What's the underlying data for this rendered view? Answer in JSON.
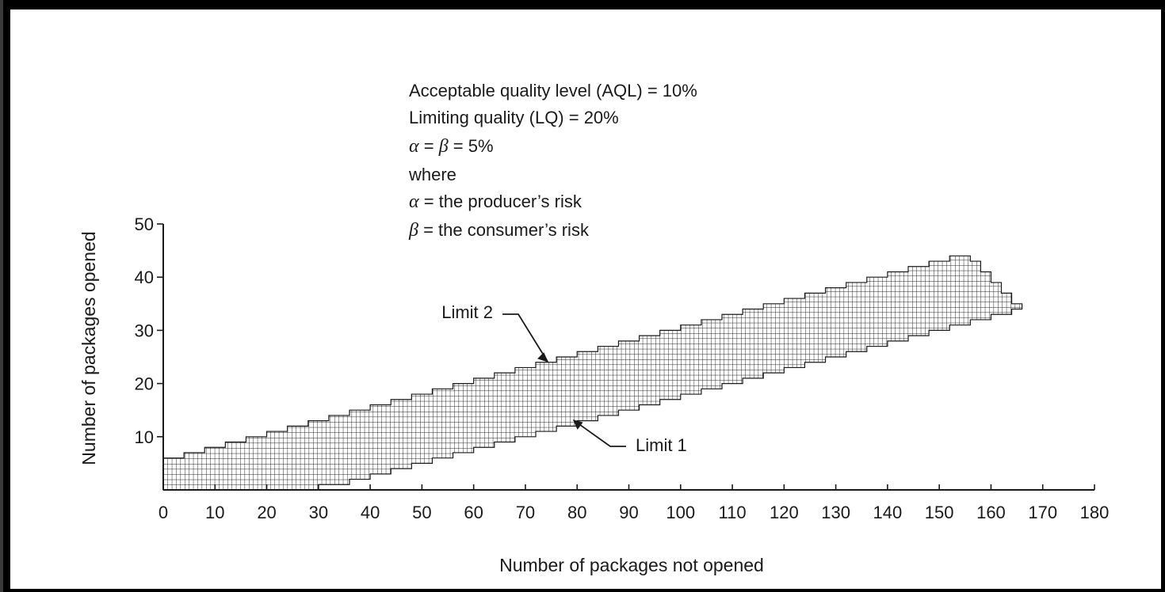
{
  "chart_data": {
    "type": "area",
    "title": "",
    "xlabel": "Number of packages not opened",
    "ylabel": "Number of packages opened",
    "xlim": [
      0,
      180
    ],
    "ylim": [
      0,
      50
    ],
    "x_ticks": [
      "0",
      "10",
      "20",
      "30",
      "40",
      "50",
      "60",
      "70",
      "80",
      "90",
      "100",
      "110",
      "120",
      "130",
      "140",
      "150",
      "160",
      "170",
      "180"
    ],
    "y_ticks": [
      "10",
      "20",
      "30",
      "40",
      "50"
    ],
    "grid": false,
    "series": [
      {
        "name": "Limit 2",
        "values": [
          [
            0,
            6
          ],
          [
            4,
            7
          ],
          [
            8,
            8
          ],
          [
            12,
            9
          ],
          [
            16,
            10
          ],
          [
            20,
            11
          ],
          [
            24,
            12
          ],
          [
            28,
            13
          ],
          [
            32,
            14
          ],
          [
            36,
            15
          ],
          [
            40,
            16
          ],
          [
            44,
            17
          ],
          [
            48,
            18
          ],
          [
            52,
            19
          ],
          [
            56,
            20
          ],
          [
            60,
            21
          ],
          [
            64,
            22
          ],
          [
            68,
            23
          ],
          [
            72,
            24
          ],
          [
            76,
            25
          ],
          [
            80,
            26
          ],
          [
            84,
            27
          ],
          [
            88,
            28
          ],
          [
            92,
            29
          ],
          [
            96,
            30
          ],
          [
            100,
            31
          ],
          [
            104,
            32
          ],
          [
            108,
            33
          ],
          [
            112,
            34
          ],
          [
            116,
            35
          ],
          [
            120,
            36
          ],
          [
            124,
            37
          ],
          [
            128,
            38
          ],
          [
            132,
            39
          ],
          [
            136,
            40
          ],
          [
            140,
            41
          ],
          [
            144,
            42
          ],
          [
            148,
            43
          ],
          [
            152,
            44
          ],
          [
            154,
            44
          ],
          [
            156,
            43
          ],
          [
            158,
            41
          ],
          [
            160,
            39
          ],
          [
            162,
            37
          ],
          [
            164,
            35
          ],
          [
            166,
            35
          ]
        ]
      },
      {
        "name": "Limit 1",
        "values": [
          [
            0,
            0
          ],
          [
            30,
            0
          ],
          [
            30,
            1
          ],
          [
            36,
            2
          ],
          [
            40,
            3
          ],
          [
            44,
            4
          ],
          [
            48,
            5
          ],
          [
            52,
            6
          ],
          [
            56,
            7
          ],
          [
            60,
            8
          ],
          [
            64,
            9
          ],
          [
            68,
            10
          ],
          [
            72,
            11
          ],
          [
            76,
            12
          ],
          [
            80,
            13
          ],
          [
            84,
            14
          ],
          [
            88,
            15
          ],
          [
            92,
            16
          ],
          [
            96,
            17
          ],
          [
            100,
            18
          ],
          [
            104,
            19
          ],
          [
            108,
            20
          ],
          [
            112,
            21
          ],
          [
            116,
            22
          ],
          [
            120,
            23
          ],
          [
            124,
            24
          ],
          [
            128,
            25
          ],
          [
            132,
            26
          ],
          [
            136,
            27
          ],
          [
            140,
            28
          ],
          [
            144,
            29
          ],
          [
            148,
            30
          ],
          [
            152,
            31
          ],
          [
            156,
            32
          ],
          [
            160,
            33
          ],
          [
            164,
            34
          ],
          [
            166,
            35
          ]
        ]
      }
    ],
    "annotations": [
      {
        "text": "Limit 2",
        "points_to": [
          74,
          25
        ]
      },
      {
        "text": "Limit 1",
        "points_to": [
          81,
          14
        ]
      }
    ]
  },
  "info": {
    "line1": "Acceptable quality level (AQL) = 10%",
    "line2": "Limiting quality (LQ) = 20%",
    "line3_sym1": "α",
    "line3_mid": " = ",
    "line3_sym2": "β",
    "line3_tail": " = 5%",
    "line4": "where",
    "line5_sym": "α",
    "line5_text": " = the producer’s risk",
    "line6_sym": "β",
    "line6_text": " = the consumer’s risk"
  },
  "colors": {
    "ink": "#1a1a1a",
    "grid_line": "#1a1a1a",
    "fill": "#ffffff"
  }
}
